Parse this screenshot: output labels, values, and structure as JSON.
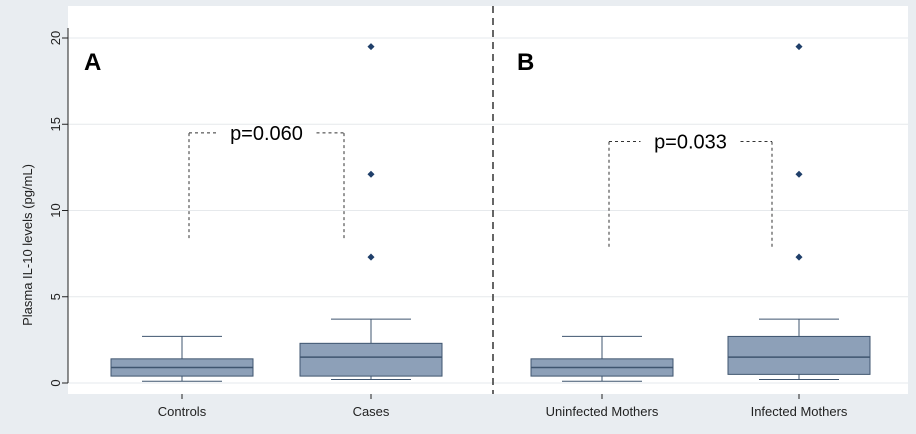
{
  "chart_data": {
    "type": "box",
    "ylabel": "Plasma IL-10 levels (pg/mL)",
    "ylim": [
      0,
      20
    ],
    "yticks": [
      0,
      5,
      10,
      15,
      20
    ],
    "grid": true,
    "colors": {
      "box_fill": "#8da0b8",
      "box_edge": "#3f556f",
      "outlier": "#1f3f6a",
      "background": "#e9edf1",
      "plot_bg": "#ffffff"
    },
    "panels": [
      {
        "letter": "A",
        "categories": [
          "Controls",
          "Cases"
        ],
        "boxes": [
          {
            "name": "Controls",
            "whisker_low": 0.1,
            "q1": 0.4,
            "median": 0.9,
            "q3": 1.4,
            "whisker_high": 2.7,
            "outliers": []
          },
          {
            "name": "Cases",
            "whisker_low": 0.2,
            "q1": 0.4,
            "median": 1.5,
            "q3": 2.3,
            "whisker_high": 3.7,
            "outliers": [
              7.3,
              12.1,
              19.5
            ]
          }
        ],
        "bracket": {
          "label": "p=0.060",
          "y": 14.5,
          "left_bottom": 8.4,
          "right_bottom": 8.4
        }
      },
      {
        "letter": "B",
        "categories": [
          "Uninfected Mothers",
          "Infected Mothers"
        ],
        "boxes": [
          {
            "name": "Uninfected Mothers",
            "whisker_low": 0.1,
            "q1": 0.4,
            "median": 0.9,
            "q3": 1.4,
            "whisker_high": 2.7,
            "outliers": []
          },
          {
            "name": "Infected Mothers",
            "whisker_low": 0.2,
            "q1": 0.5,
            "median": 1.5,
            "q3": 2.7,
            "whisker_high": 3.7,
            "outliers": [
              7.3,
              12.1,
              19.5
            ]
          }
        ],
        "bracket": {
          "label": "p=0.033",
          "y": 14.0,
          "left_bottom": 7.9,
          "right_bottom": 7.9
        }
      }
    ]
  }
}
